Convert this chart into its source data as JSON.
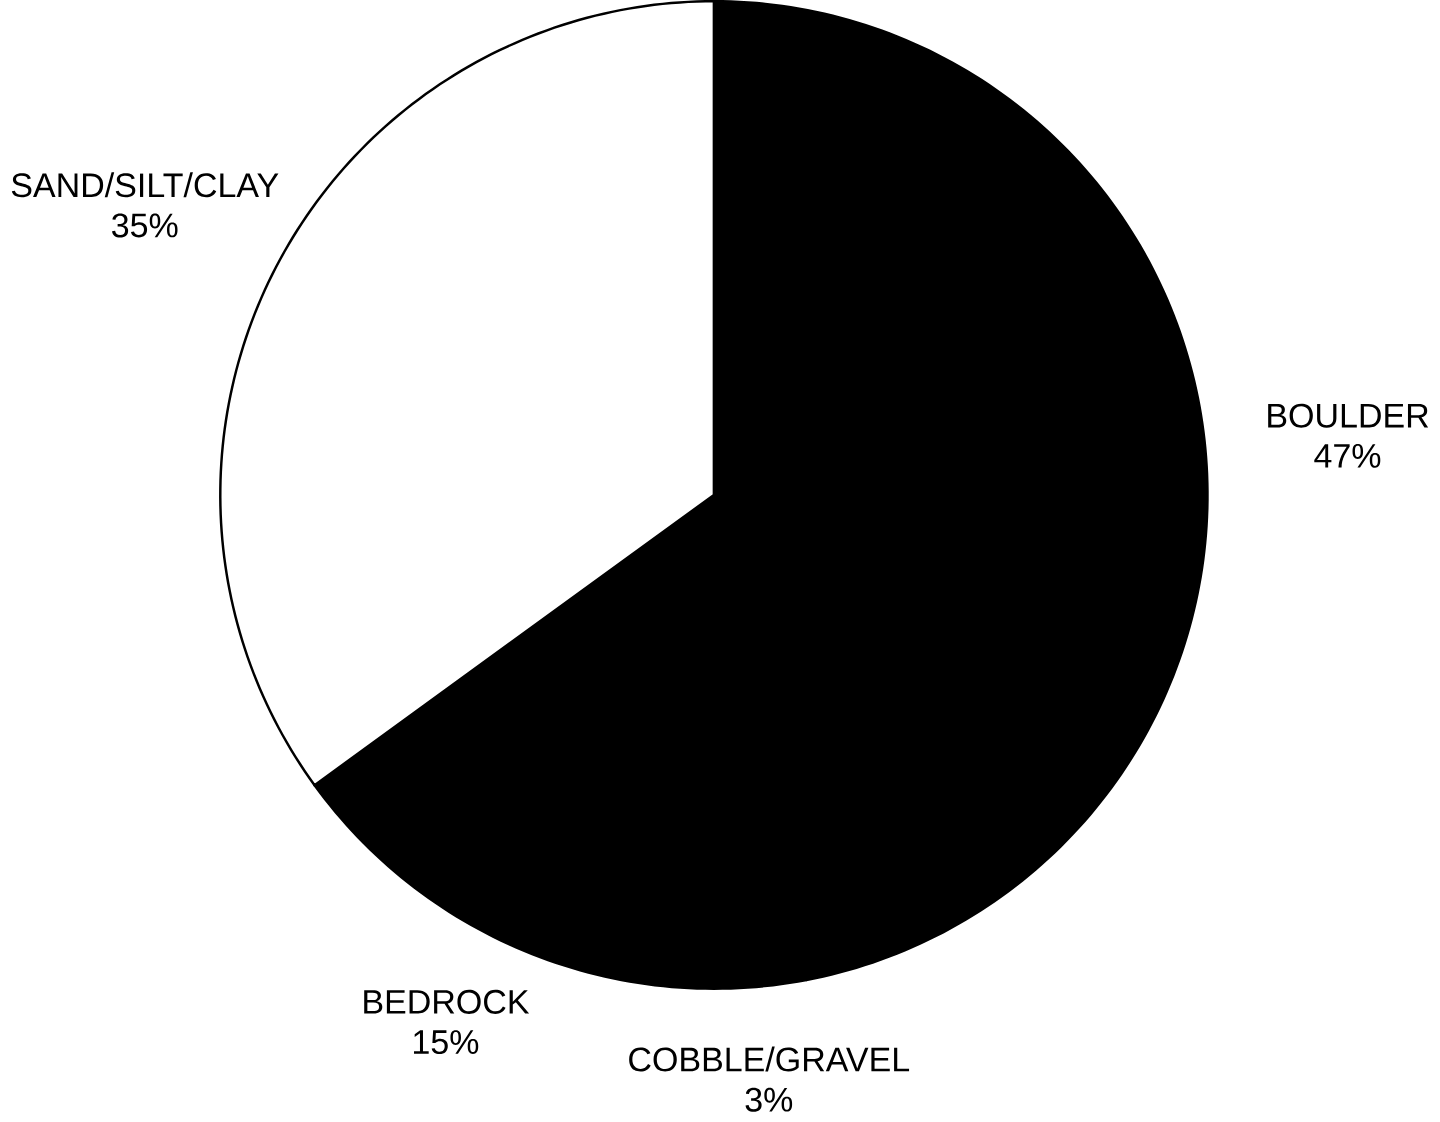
{
  "chart_data": {
    "type": "pie",
    "categories": [
      "BOULDER",
      "COBBLE/GRAVEL",
      "BEDROCK",
      "SAND/SILT/CLAY"
    ],
    "values": [
      47,
      3,
      15,
      35
    ],
    "value_labels": [
      "47%",
      "3%",
      "15%",
      "35%"
    ],
    "colors": [
      "#000000",
      "#000000",
      "#000000",
      "#ffffff"
    ]
  }
}
